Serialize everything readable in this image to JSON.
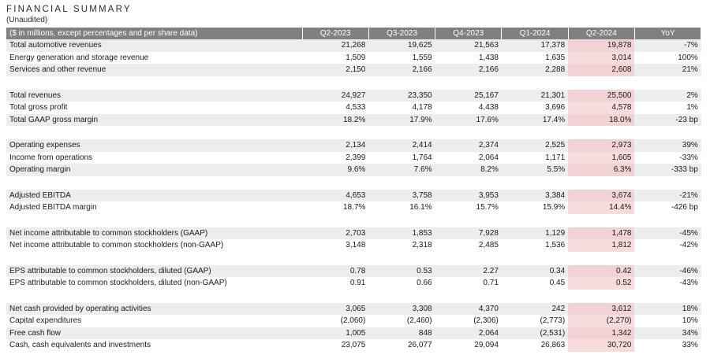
{
  "title": "FINANCIAL SUMMARY",
  "subtitle": "(Unaudited)",
  "header": [
    "($ in millions, except percentages and per share data)",
    "Q2-2023",
    "Q3-2023",
    "Q4-2023",
    "Q1-2024",
    "Q2-2024",
    "YoY"
  ],
  "groups": [
    [
      [
        "Total automotive revenues",
        "21,268",
        "19,625",
        "21,563",
        "17,378",
        "19,878",
        "-7%"
      ],
      [
        "Energy generation and storage revenue",
        "1,509",
        "1,559",
        "1,438",
        "1,635",
        "3,014",
        "100%"
      ],
      [
        "Services and other revenue",
        "2,150",
        "2,166",
        "2,166",
        "2,288",
        "2,608",
        "21%"
      ]
    ],
    [
      [
        "Total revenues",
        "24,927",
        "23,350",
        "25,167",
        "21,301",
        "25,500",
        "2%"
      ],
      [
        "Total gross profit",
        "4,533",
        "4,178",
        "4,438",
        "3,696",
        "4,578",
        "1%"
      ],
      [
        "Total GAAP gross margin",
        "18.2%",
        "17.9%",
        "17.6%",
        "17.4%",
        "18.0%",
        "-23 bp"
      ]
    ],
    [
      [
        "Operating expenses",
        "2,134",
        "2,414",
        "2,374",
        "2,525",
        "2,973",
        "39%"
      ],
      [
        "Income from operations",
        "2,399",
        "1,764",
        "2,064",
        "1,171",
        "1,605",
        "-33%"
      ],
      [
        "Operating margin",
        "9.6%",
        "7.6%",
        "8.2%",
        "5.5%",
        "6.3%",
        "-333 bp"
      ]
    ],
    [
      [
        "Adjusted EBITDA",
        "4,653",
        "3,758",
        "3,953",
        "3,384",
        "3,674",
        "-21%"
      ],
      [
        "Adjusted EBITDA margin",
        "18.7%",
        "16.1%",
        "15.7%",
        "15.9%",
        "14.4%",
        "-426 bp"
      ]
    ],
    [
      [
        "Net income attributable to common stockholders (GAAP)",
        "2,703",
        "1,853",
        "7,928",
        "1,129",
        "1,478",
        "-45%"
      ],
      [
        "Net income attributable to common stockholders (non-GAAP)",
        "3,148",
        "2,318",
        "2,485",
        "1,536",
        "1,812",
        "-42%"
      ]
    ],
    [
      [
        "EPS attributable to common stockholders, diluted (GAAP)",
        "0.78",
        "0.53",
        "2.27",
        "0.34",
        "0.42",
        "-46%"
      ],
      [
        "EPS attributable to common stockholders, diluted (non-GAAP)",
        "0.91",
        "0.66",
        "0.71",
        "0.45",
        "0.52",
        "-43%"
      ]
    ],
    [
      [
        "Net cash provided by operating activities",
        "3,065",
        "3,308",
        "4,370",
        "242",
        "3,612",
        "18%"
      ],
      [
        "Capital expenditures",
        "(2,060)",
        "(2,460)",
        "(2,306)",
        "(2,773)",
        "(2,270)",
        "10%"
      ],
      [
        "Free cash flow",
        "1,005",
        "848",
        "2,064",
        "(2,531)",
        "1,342",
        "34%"
      ],
      [
        "Cash, cash equivalents and investments",
        "23,075",
        "26,077",
        "29,094",
        "26,863",
        "30,720",
        "33%"
      ]
    ]
  ],
  "colors": {
    "header_bg": "#808080",
    "row_shade": "#ededed",
    "highlight": "#f7dcdc"
  }
}
